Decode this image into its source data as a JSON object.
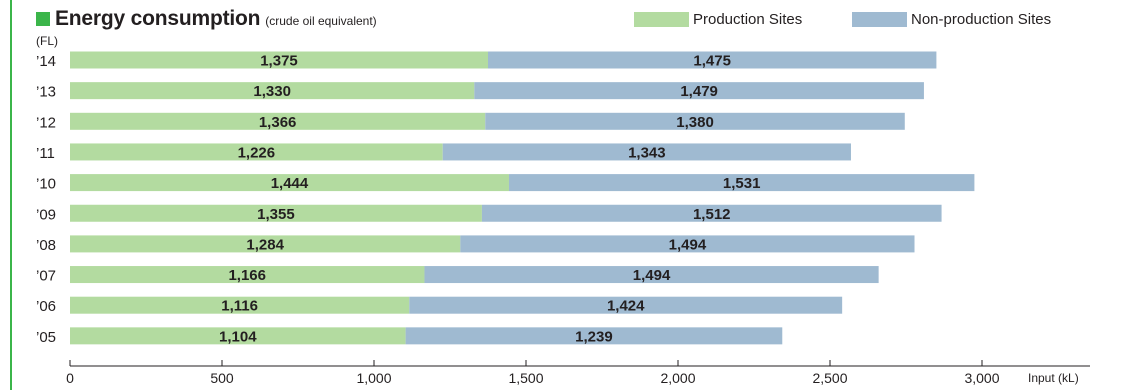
{
  "chart_data": {
    "type": "bar",
    "orientation": "horizontal",
    "stacked": true,
    "title": "Energy consumption",
    "subtitle": "(crude oil equivalent)",
    "ylabel": "(FL)",
    "xlabel": "Input (kL)",
    "categories": [
      "’14",
      "’13",
      "’12",
      "’11",
      "’10",
      "’09",
      "’08",
      "’07",
      "’06",
      "’05"
    ],
    "series": [
      {
        "name": "Production Sites",
        "color": "#b3dba0",
        "values": [
          1375,
          1330,
          1366,
          1226,
          1444,
          1355,
          1284,
          1166,
          1116,
          1104
        ]
      },
      {
        "name": "Non-production Sites",
        "color": "#9fbad1",
        "values": [
          1475,
          1479,
          1380,
          1343,
          1531,
          1512,
          1494,
          1494,
          1424,
          1239
        ]
      }
    ],
    "data_labels": [
      [
        "1,375",
        "1,330",
        "1,366",
        "1,226",
        "1,444",
        "1,355",
        "1,284",
        "1,166",
        "1,116",
        "1,104"
      ],
      [
        "1,475",
        "1,479",
        "1,380",
        "1,343",
        "1,531",
        "1,512",
        "1,494",
        "1,494",
        "1,424",
        "1,239"
      ]
    ],
    "xlim": [
      0,
      3000
    ],
    "xticks": [
      0,
      500,
      1000,
      1500,
      2000,
      2500,
      3000
    ],
    "xtick_labels": [
      "0",
      "500",
      "1,000",
      "1,500",
      "2,000",
      "2,500",
      "3,000"
    ],
    "grid": false,
    "legend_position": "top-right"
  },
  "colors": {
    "accent": "#3bb54a",
    "axis": "#231f20"
  }
}
